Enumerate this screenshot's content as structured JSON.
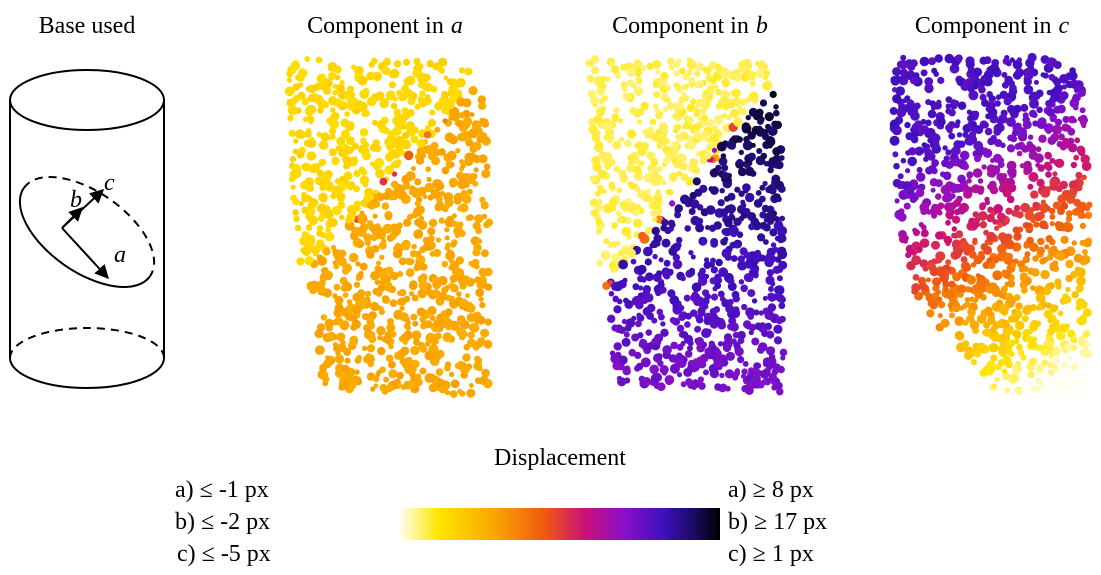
{
  "base": {
    "title": "Base used",
    "axes": [
      "a",
      "b",
      "c"
    ]
  },
  "panels": [
    {
      "title": "Component in",
      "variable": "a"
    },
    {
      "title": "Component in",
      "variable": "b"
    },
    {
      "title": "Component in",
      "variable": "c"
    }
  ],
  "colorbar": {
    "title": "Displacement",
    "min_labels": [
      "a) ≤ -1 px",
      "b) ≤ -2 px",
      "c) ≤ -5 px"
    ],
    "max_labels": [
      "a) ≥ 8 px",
      "b) ≥ 17 px",
      "c) ≥ 1 px"
    ]
  }
}
